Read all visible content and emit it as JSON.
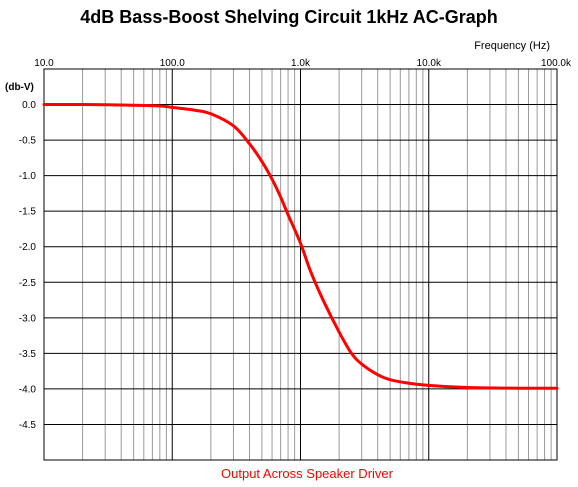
{
  "chart_data": {
    "type": "line",
    "title": "4dB Bass-Boost Shelving Circuit 1kHz AC-Graph",
    "xlabel": "Frequency  (Hz)",
    "ylabel": "(db-V)",
    "caption": "Output Across Speaker Driver",
    "x_scale": "log",
    "xlim": [
      10,
      100000
    ],
    "ylim": [
      -5.0,
      0.5
    ],
    "x_tick_labels": [
      "10.0",
      "100.0",
      "1.0k",
      "10.0k",
      "100.0k"
    ],
    "x_tick_values": [
      10,
      100,
      1000,
      10000,
      100000
    ],
    "y_tick_labels": [
      "0.0",
      "-0.5",
      "-1.0",
      "-1.5",
      "-2.0",
      "-2.5",
      "-3.0",
      "-3.5",
      "-4.0",
      "-4.5"
    ],
    "y_tick_values": [
      0.0,
      -0.5,
      -1.0,
      -1.5,
      -2.0,
      -2.5,
      -3.0,
      -3.5,
      -4.0,
      -4.5
    ],
    "grid": true,
    "series": [
      {
        "color": "#ff0000",
        "x": [
          10,
          20,
          50,
          80,
          100,
          150,
          200,
          300,
          400,
          500,
          600,
          700,
          800,
          1000,
          1200,
          1500,
          2000,
          2500,
          3000,
          4000,
          5000,
          7000,
          10000,
          20000,
          50000,
          100000
        ],
        "y": [
          0.0,
          0.0,
          -0.01,
          -0.02,
          -0.04,
          -0.08,
          -0.13,
          -0.3,
          -0.55,
          -0.8,
          -1.05,
          -1.3,
          -1.55,
          -1.95,
          -2.35,
          -2.75,
          -3.2,
          -3.5,
          -3.65,
          -3.8,
          -3.87,
          -3.92,
          -3.95,
          -3.98,
          -3.99,
          -3.99
        ]
      }
    ]
  }
}
